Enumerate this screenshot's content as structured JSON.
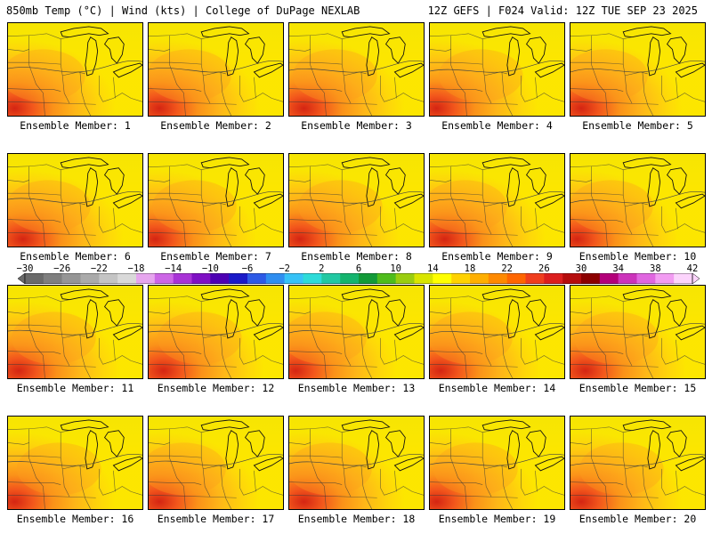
{
  "header": {
    "left": "850mb Temp (°C) | Wind (kts) | College of DuPage NEXLAB",
    "right": "12Z GEFS | F024 Valid: 12Z TUE SEP 23 2025"
  },
  "colorbar": {
    "tick_labels": [
      "−30",
      "−26",
      "−22",
      "−18",
      "−14",
      "−10",
      "−6",
      "−2",
      "2",
      "6",
      "10",
      "14",
      "18",
      "22",
      "26",
      "30",
      "34",
      "38",
      "42"
    ],
    "colors": [
      "#6a6a6a",
      "#7f7f7f",
      "#959595",
      "#aaaaaa",
      "#c4c4c4",
      "#d9d9d9",
      "#e6a5ee",
      "#cc66e6",
      "#a833d6",
      "#7f10c4",
      "#4d00b3",
      "#1a1ac8",
      "#2d5ae6",
      "#2f8ef0",
      "#36c2f7",
      "#2ddbd9",
      "#21c8a2",
      "#14b46e",
      "#139a39",
      "#4fbc1c",
      "#9acd10",
      "#d9e500",
      "#ffff00",
      "#ffd200",
      "#ffaf00",
      "#ff8a00",
      "#ff6600",
      "#f03e1e",
      "#dc1e1e",
      "#b50d0d",
      "#8c0000",
      "#b3007a",
      "#cc33bb",
      "#e066e0",
      "#f29cf2",
      "#fcd4fc"
    ]
  },
  "members": [
    {
      "label": "Ensemble Member: 1"
    },
    {
      "label": "Ensemble Member: 2"
    },
    {
      "label": "Ensemble Member: 3"
    },
    {
      "label": "Ensemble Member: 4"
    },
    {
      "label": "Ensemble Member: 5"
    },
    {
      "label": "Ensemble Member: 6"
    },
    {
      "label": "Ensemble Member: 7"
    },
    {
      "label": "Ensemble Member: 8"
    },
    {
      "label": "Ensemble Member: 9"
    },
    {
      "label": "Ensemble Member: 10"
    },
    {
      "label": "Ensemble Member: 11"
    },
    {
      "label": "Ensemble Member: 12"
    },
    {
      "label": "Ensemble Member: 13"
    },
    {
      "label": "Ensemble Member: 14"
    },
    {
      "label": "Ensemble Member: 15"
    },
    {
      "label": "Ensemble Member: 16"
    },
    {
      "label": "Ensemble Member: 17"
    },
    {
      "label": "Ensemble Member: 18"
    },
    {
      "label": "Ensemble Member: 19"
    },
    {
      "label": "Ensemble Member: 20"
    }
  ]
}
